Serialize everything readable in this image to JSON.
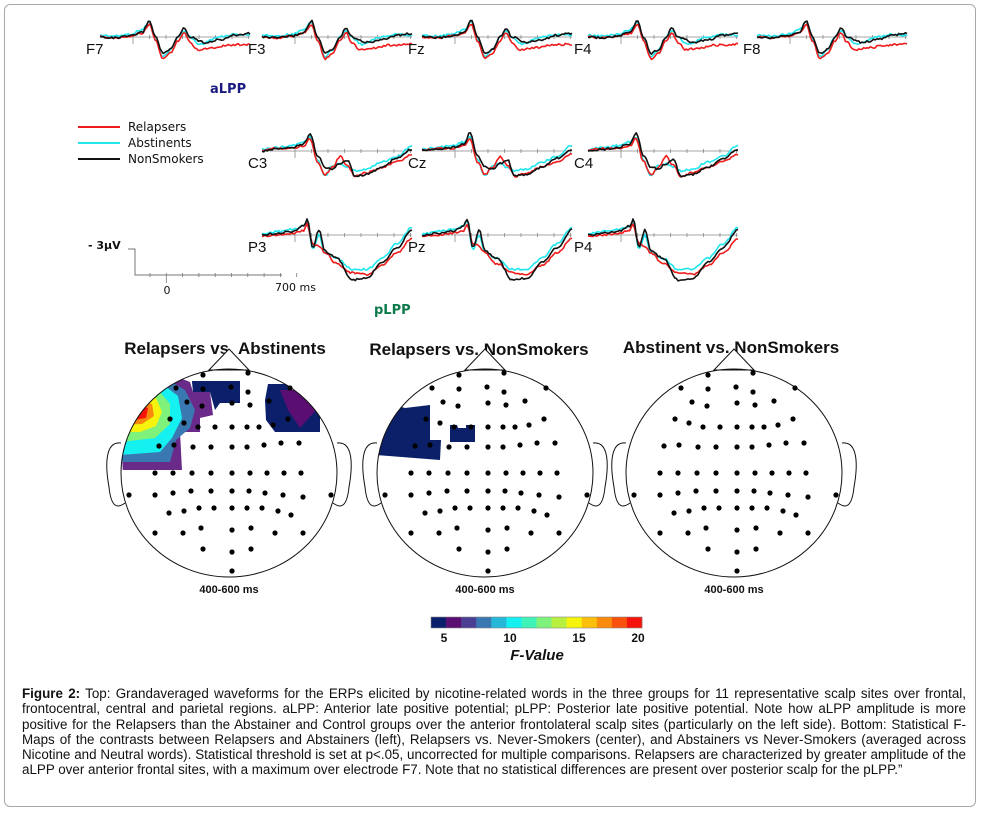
{
  "figure": {
    "legend": [
      {
        "label": "Relapsers",
        "color": "#ee1c1c"
      },
      {
        "label": "Abstinents",
        "color": "#22e6ee"
      },
      {
        "label": "NonSmokers",
        "color": "#111111"
      }
    ],
    "scale_bar": {
      "amplitude_label": "- 3μV",
      "time_start_label": "0",
      "time_end_label": "700 ms"
    },
    "annotations": {
      "alpp": "aLPP",
      "plpp": "pLPP"
    },
    "waveforms": [
      {
        "label": "F7",
        "shape": "frontal",
        "row": 0,
        "col": 0
      },
      {
        "label": "F3",
        "shape": "frontal",
        "row": 0,
        "col": 1
      },
      {
        "label": "Fz",
        "shape": "frontal",
        "row": 0,
        "col": 2
      },
      {
        "label": "F4",
        "shape": "frontal",
        "row": 0,
        "col": 3
      },
      {
        "label": "F8",
        "shape": "frontal",
        "row": 0,
        "col": 4
      },
      {
        "label": "C3",
        "shape": "central",
        "row": 1,
        "col": 1
      },
      {
        "label": "Cz",
        "shape": "central",
        "row": 1,
        "col": 2
      },
      {
        "label": "C4",
        "shape": "central",
        "row": 1,
        "col": 3
      },
      {
        "label": "P3",
        "shape": "parietal",
        "row": 2,
        "col": 1
      },
      {
        "label": "Pz",
        "shape": "parietal",
        "row": 2,
        "col": 2
      },
      {
        "label": "P4",
        "shape": "parietal",
        "row": 2,
        "col": 3
      }
    ],
    "maps": [
      {
        "title": "Relapsers vs. Abstinents",
        "time_window": "400-600 ms",
        "significant_regions": "left anterior frontal (max near F7, F≈20) and right anterior frontal (F≈5-7)"
      },
      {
        "title": "Relapsers vs. NonSmokers",
        "time_window": "400-600 ms",
        "significant_regions": "left anterior frontal (F≈5) and small frontocentral patch"
      },
      {
        "title": "Abstinent vs. NonSmokers",
        "time_window": "400-600 ms",
        "significant_regions": "none"
      }
    ],
    "colorbar": {
      "label": "F-Value",
      "ticks": [
        "5",
        "10",
        "15",
        "20"
      ],
      "range": [
        4,
        20
      ],
      "colors": [
        "#0b1f6b",
        "#5a0e72",
        "#4b3f93",
        "#3a78b2",
        "#26b8d8",
        "#15f0f0",
        "#3ef2b8",
        "#7ef27a",
        "#b8f040",
        "#f6f40c",
        "#fcc00c",
        "#fa8a0c",
        "#f8520c",
        "#f5140c"
      ]
    }
  },
  "caption": {
    "label": "Figure 2:",
    "text": " Top: Grandaveraged waveforms for the ERPs elicited by nicotine-related words in the three groups for 11 representative scalp sites over frontal, frontocentral, central and parietal regions. aLPP: Anterior late positive potential; pLPP: Posterior late positive potential. Note how aLPP amplitude is more positive for the Relapsers than the Abstainer and Control groups over the anterior frontolateral scalp sites (particularly on the left side). Bottom: Statistical F-Maps of the contrasts between Relapsers and Abstainers (left), Relapsers vs. Never-Smokers (center), and Abstainers vs Never-Smokers (averaged across Nicotine and Neutral words). Statistical threshold is set at p<.05, uncorrected for multiple comparisons. Relapsers are characterized by greater amplitude of the aLPP over anterior frontal sites, with a maximum over electrode F7. Note that no statistical differences are present over posterior scalp for the pLPP.”"
  }
}
